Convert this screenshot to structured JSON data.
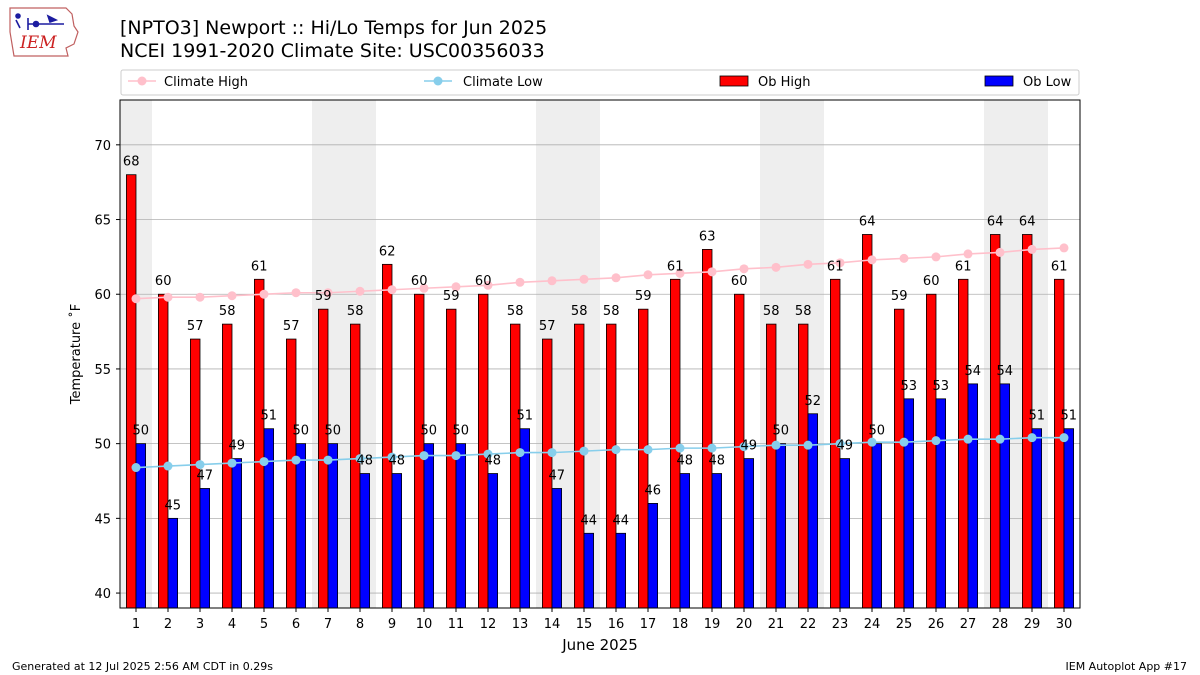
{
  "header": {
    "title_line1": "[NPTO3] Newport :: Hi/Lo Temps for Jun 2025",
    "title_line2": "NCEI 1991-2020 Climate Site: USC00356033"
  },
  "logo": {
    "text": "IEM"
  },
  "footer": {
    "generated": "Generated at 12 Jul 2025 2:56 AM CDT in 0.29s",
    "app": "IEM Autoplot App #17"
  },
  "colors": {
    "ob_high": "#ff0000",
    "ob_low": "#0000ff",
    "climate_high": "#ffc0cb",
    "climate_low": "#87ceeb",
    "weekend_band": "#eeeeee",
    "grid": "#b0b0b0"
  },
  "chart_data": {
    "type": "bar",
    "xlabel": "June 2025",
    "ylabel": "Temperature $^\\circ$F",
    "ylabel_display": "Temperature ˚F",
    "ylim": [
      39,
      73
    ],
    "yticks": [
      40,
      45,
      50,
      55,
      60,
      65,
      70
    ],
    "x": [
      1,
      2,
      3,
      4,
      5,
      6,
      7,
      8,
      9,
      10,
      11,
      12,
      13,
      14,
      15,
      16,
      17,
      18,
      19,
      20,
      21,
      22,
      23,
      24,
      25,
      26,
      27,
      28,
      29,
      30
    ],
    "shaded_days": [
      1,
      7,
      8,
      14,
      15,
      21,
      22,
      28,
      29
    ],
    "grid": true,
    "legend_position": "top",
    "series": [
      {
        "name": "Climate High",
        "kind": "line",
        "values": [
          59.7,
          59.8,
          59.8,
          59.9,
          60.0,
          60.1,
          60.1,
          60.2,
          60.3,
          60.4,
          60.5,
          60.6,
          60.8,
          60.9,
          61.0,
          61.1,
          61.3,
          61.4,
          61.5,
          61.7,
          61.8,
          62.0,
          62.1,
          62.3,
          62.4,
          62.5,
          62.7,
          62.8,
          63.0,
          63.1
        ]
      },
      {
        "name": "Climate Low",
        "kind": "line",
        "values": [
          48.4,
          48.5,
          48.6,
          48.7,
          48.8,
          48.9,
          48.9,
          49.0,
          49.1,
          49.2,
          49.2,
          49.3,
          49.4,
          49.4,
          49.5,
          49.6,
          49.6,
          49.7,
          49.7,
          49.8,
          49.9,
          49.9,
          50.0,
          50.1,
          50.1,
          50.2,
          50.3,
          50.3,
          50.4,
          50.4
        ]
      },
      {
        "name": "Ob High",
        "kind": "bar",
        "values": [
          68,
          60,
          57,
          58,
          61,
          57,
          59,
          58,
          62,
          60,
          59,
          60,
          58,
          57,
          58,
          58,
          59,
          61,
          63,
          60,
          58,
          58,
          61,
          64,
          59,
          60,
          61,
          64,
          64,
          61
        ]
      },
      {
        "name": "Ob Low",
        "kind": "bar",
        "values": [
          50,
          45,
          47,
          49,
          51,
          50,
          50,
          48,
          48,
          50,
          50,
          48,
          51,
          47,
          44,
          44,
          46,
          48,
          48,
          49,
          50,
          52,
          49,
          50,
          53,
          53,
          54,
          54,
          51,
          51
        ]
      }
    ]
  }
}
